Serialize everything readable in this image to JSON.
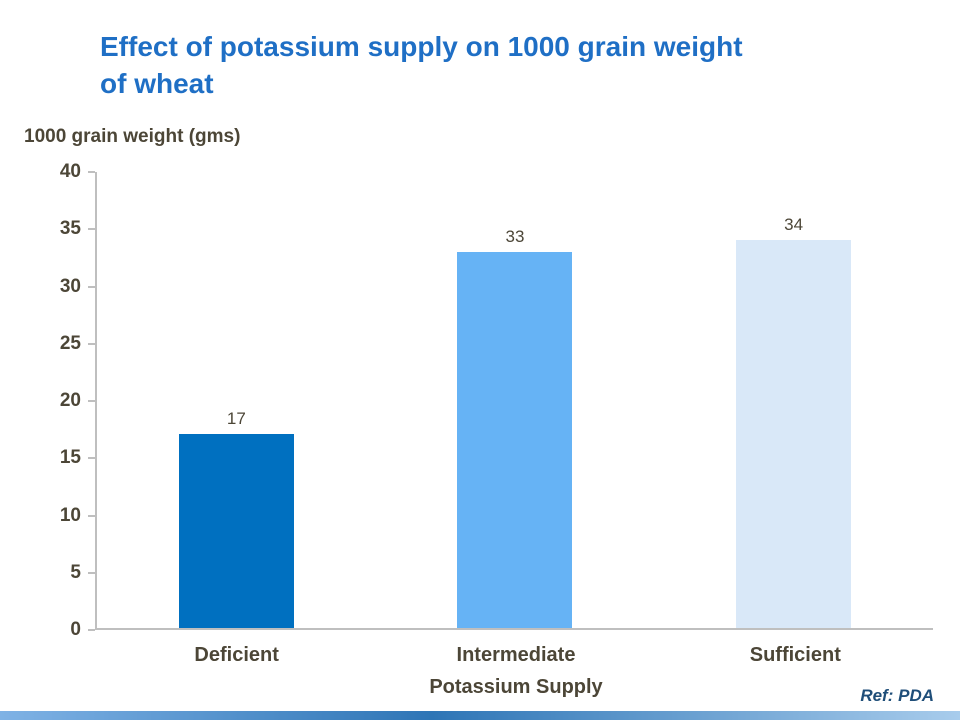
{
  "slide": {
    "title": "Effect of potassium  supply on 1000 grain weight\nof wheat",
    "ref": "Ref: PDA"
  },
  "chart_data": {
    "type": "bar",
    "title": "Effect of potassium supply on 1000 grain weight of wheat",
    "categories": [
      "Deficient",
      "Intermediate",
      "Sufficient"
    ],
    "values": [
      17,
      33,
      34
    ],
    "bar_colors": [
      "#0070C0",
      "#66B3F5",
      "#D9E8F8"
    ],
    "xlabel": "Potassium Supply",
    "ylabel": "1000 grain weight (gms)",
    "ylim": [
      0,
      40
    ],
    "yticks": [
      0,
      5,
      10,
      15,
      20,
      25,
      30,
      35,
      40
    ],
    "grid": false,
    "data_labels": true,
    "legend": false
  },
  "colors": {
    "title_blue": "#1F6FC5",
    "text_brown": "#4C4637",
    "axis_gray": "#BFBFBF",
    "ref_blue": "#1F4E79",
    "strip_blue_dark": "#2E75B6",
    "strip_blue_light": "#A8CCEC"
  }
}
